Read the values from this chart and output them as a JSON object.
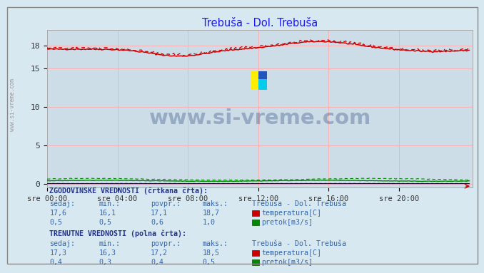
{
  "title": "Trebuša - Dol. Trebuša",
  "title_color": "#1a1aee",
  "bg_color": "#d8e8f0",
  "plot_bg_color": "#ccdde8",
  "grid_color_h": "#ffaaaa",
  "grid_color_v": "#ffaaaa",
  "x_tick_labels": [
    "sre 00:00",
    "sre 04:00",
    "sre 08:00",
    "sre 12:00",
    "sre 16:00",
    "sre 20:00"
  ],
  "x_tick_positions": [
    0,
    4,
    8,
    12,
    16,
    20
  ],
  "yticks": [
    0,
    5,
    10,
    15,
    18
  ],
  "ylim": [
    -0.5,
    20
  ],
  "xlim": [
    0,
    24.2
  ],
  "temp_color": "#cc0000",
  "flow_color": "#008800",
  "height_color": "#0000bb",
  "watermark_text": "www.si-vreme.com",
  "watermark_color": "#1a3a6e",
  "watermark_alpha": 0.3,
  "sidebar_text": "www.si-vreme.com",
  "n_points": 288,
  "temp_hist_sedaj": 17.6,
  "temp_hist_min": 16.1,
  "temp_hist_povpr": 17.1,
  "temp_hist_maks": 18.7,
  "flow_hist_sedaj": 0.5,
  "flow_hist_min": 0.5,
  "flow_hist_povpr": 0.6,
  "flow_hist_maks": 1.0,
  "temp_curr_sedaj": 17.3,
  "temp_curr_min": 16.3,
  "temp_curr_povpr": 17.2,
  "temp_curr_maks": 18.5,
  "flow_curr_sedaj": 0.4,
  "flow_curr_min": 0.3,
  "flow_curr_povpr": 0.4,
  "flow_curr_maks": 0.5,
  "station_name": "Trebuša - Dol. Trebuša",
  "label_temp": "temperatura[C]",
  "label_flow": "pretok[m3/s]",
  "hist_label": "ZGODOVINSKE VREDNOSTI (črtkana črta):",
  "curr_label": "TRENUTNE VREDNOSTI (polna črta):",
  "col_sedaj": "sedaj:",
  "col_min": "min.:",
  "col_povpr": "povpr.:",
  "col_maks": "maks.:"
}
